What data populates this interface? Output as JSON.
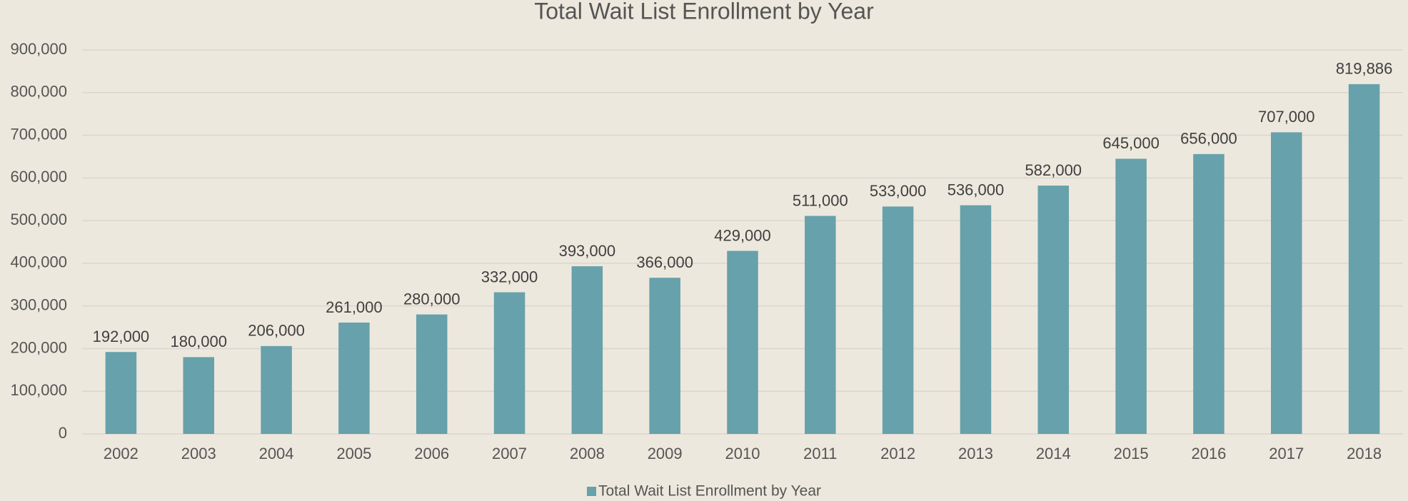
{
  "chart_data": {
    "type": "bar",
    "title": "Total Wait List Enrollment by Year",
    "categories": [
      "2002",
      "2003",
      "2004",
      "2005",
      "2006",
      "2007",
      "2008",
      "2009",
      "2010",
      "2011",
      "2012",
      "2013",
      "2014",
      "2015",
      "2016",
      "2017",
      "2018"
    ],
    "series": [
      {
        "name": "Total Wait List Enrollment by Year",
        "color": "#67a1ab",
        "values": [
          192000,
          180000,
          206000,
          261000,
          280000,
          332000,
          393000,
          366000,
          429000,
          511000,
          533000,
          536000,
          582000,
          645000,
          656000,
          707000,
          819886
        ],
        "value_labels": [
          "192,000",
          "180,000",
          "206,000",
          "261,000",
          "280,000",
          "332,000",
          "393,000",
          "366,000",
          "429,000",
          "511,000",
          "533,000",
          "536,000",
          "582,000",
          "645,000",
          "656,000",
          "707,000",
          "819,886"
        ]
      }
    ],
    "ylim": [
      0,
      900000
    ],
    "yticks": [
      0,
      {
        "value": 100000,
        "label": "100,000"
      },
      {
        "value": 200000,
        "label": "200,000"
      },
      {
        "value": 300000,
        "label": "300,000"
      },
      {
        "value": 400000,
        "label": "400,000"
      },
      {
        "value": 500000,
        "label": "500,000"
      },
      {
        "value": 600000,
        "label": "600,000"
      },
      {
        "value": 700000,
        "label": "700,000"
      },
      {
        "value": 800000,
        "label": "800,000"
      },
      {
        "value": 900000,
        "label": "900,000"
      }
    ],
    "grid": true,
    "legend": "bottom"
  }
}
